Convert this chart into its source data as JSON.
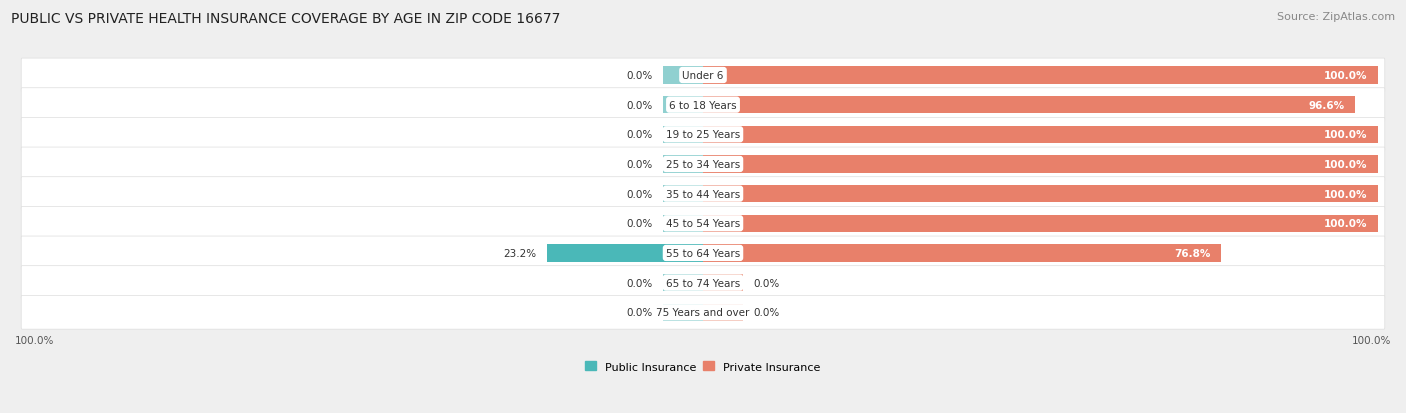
{
  "title": "PUBLIC VS PRIVATE HEALTH INSURANCE COVERAGE BY AGE IN ZIP CODE 16677",
  "source": "Source: ZipAtlas.com",
  "categories": [
    "Under 6",
    "6 to 18 Years",
    "19 to 25 Years",
    "25 to 34 Years",
    "35 to 44 Years",
    "45 to 54 Years",
    "55 to 64 Years",
    "65 to 74 Years",
    "75 Years and over"
  ],
  "public_values": [
    0.0,
    0.0,
    0.0,
    0.0,
    0.0,
    0.0,
    23.2,
    0.0,
    0.0
  ],
  "private_values": [
    100.0,
    96.6,
    100.0,
    100.0,
    100.0,
    100.0,
    76.8,
    0.0,
    0.0
  ],
  "public_color": "#4ab8b8",
  "private_color": "#e8806a",
  "public_color_light": "#90d0d0",
  "private_color_light": "#f0b0a0",
  "bg_color": "#efefef",
  "row_bg_color": "#ffffff",
  "stub_size": 6.0,
  "title_fontsize": 10,
  "source_fontsize": 8,
  "bar_label_fontsize": 7.5,
  "category_fontsize": 7.5,
  "legend_fontsize": 8,
  "x_axis_label_left": "100.0%",
  "x_axis_label_right": "100.0%",
  "xlim_left": -100,
  "xlim_right": 100
}
